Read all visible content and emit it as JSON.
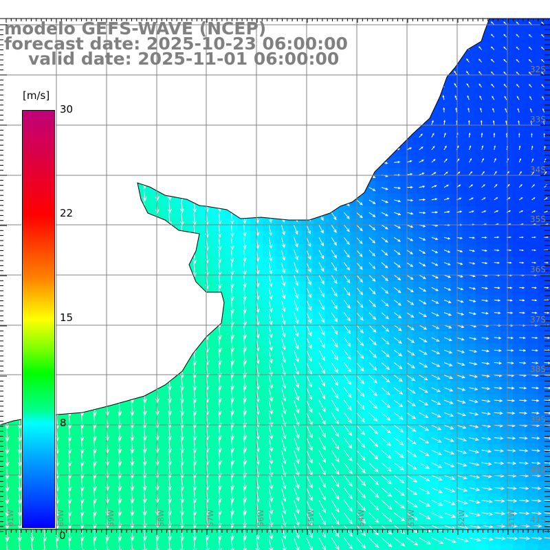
{
  "title": {
    "line1": "modelo GEFS-WAVE (NCEP)",
    "line2": "forecast date: 2025-10-23 06:00:00",
    "line3": "valid date: 2025-11-01 06:00:00"
  },
  "colorbar": {
    "unit": "[m/s]",
    "labels": [
      "30",
      "22",
      "15",
      "8",
      "0"
    ],
    "min": 0,
    "max": 30
  },
  "lat_labels": [
    "32S",
    "33S",
    "34S",
    "35S",
    "36S",
    "37S",
    "38S",
    "39S",
    "40S",
    "41S"
  ],
  "lon_labels": [
    "61W",
    "60W",
    "59W",
    "58W",
    "57W",
    "56W",
    "55W",
    "54W",
    "53W",
    "52W",
    "51W"
  ],
  "colors": {
    "land": "#ffffff",
    "grid": "#808080",
    "coast": "#000000",
    "arrow": "#ffffff",
    "title": "#808080"
  }
}
